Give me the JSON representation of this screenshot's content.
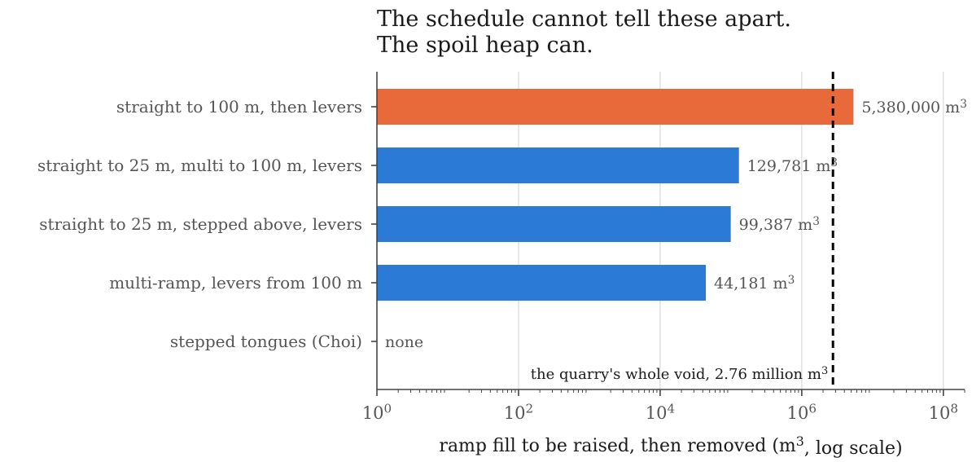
{
  "chart_data": {
    "type": "bar",
    "orientation": "horizontal",
    "title": "The schedule cannot tell these apart.\nThe spoil heap can.",
    "xlabel": "ramp fill to be raised, then removed (m3, log scale)",
    "xscale": "log",
    "xlim": [
      1,
      200000000
    ],
    "xticks": [
      1,
      100,
      10000,
      1000000,
      100000000
    ],
    "xtick_labels": [
      "10^0",
      "10^2",
      "10^4",
      "10^6",
      "10^8"
    ],
    "grid": "vertical, major ticks",
    "categories": [
      "straight to 100 m, then levers",
      "straight to 25 m, multi to 100 m, levers",
      "straight to 25 m, stepped above, levers",
      "multi-ramp, levers from 100 m",
      "stepped tongues (Choi)"
    ],
    "values": [
      5380000,
      129781,
      99387,
      44181,
      0
    ],
    "value_labels": [
      "5,380,000 m3",
      "129,781 m3",
      "99,387 m3",
      "44,181 m3",
      "none"
    ],
    "bar_colors": [
      "#E8693A",
      "#2B7BD6",
      "#2B7BD6",
      "#2B7BD6",
      "#2B7BD6"
    ],
    "reference_line": {
      "value": 2760000,
      "label": "the quarry's whole void, 2.76 million m3",
      "style": "dashed",
      "color": "#000000"
    }
  }
}
